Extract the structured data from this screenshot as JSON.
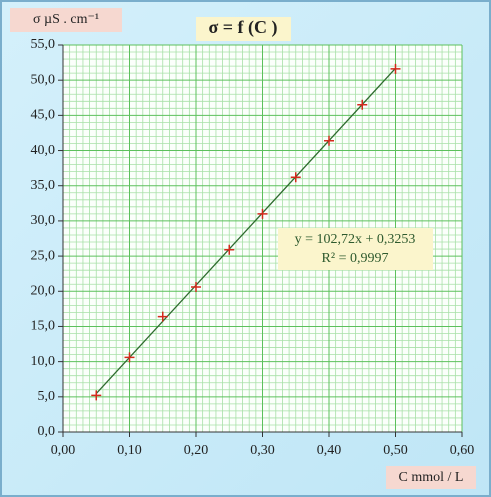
{
  "chart_data": {
    "type": "scatter",
    "title": "σ = f (C )",
    "x_label": "C mmol / L",
    "y_label": "σ µS . cm⁻¹",
    "series": [
      {
        "name": "σ",
        "color": "#d42a1c",
        "x": [
          0.05,
          0.1,
          0.15,
          0.2,
          0.25,
          0.3,
          0.35,
          0.4,
          0.45,
          0.5
        ],
        "values": [
          5.2,
          10.6,
          16.4,
          20.6,
          25.9,
          31.0,
          36.2,
          41.4,
          46.5,
          51.6
        ]
      }
    ],
    "trendline": {
      "slope": 102.72,
      "intercept": 0.3253,
      "color": "#2e6b2e",
      "equation": "y = 102,72x + 0,3253",
      "r2": "R² = 0,9997"
    },
    "xlim": [
      0,
      0.6
    ],
    "ylim": [
      0,
      55
    ],
    "xticks": [
      {
        "value": 0,
        "label": "0,00"
      },
      {
        "value": 0.1,
        "label": "0,10"
      },
      {
        "value": 0.2,
        "label": "0,20"
      },
      {
        "value": 0.3,
        "label": "0,30"
      },
      {
        "value": 0.4,
        "label": "0,40"
      },
      {
        "value": 0.5,
        "label": "0,50"
      },
      {
        "value": 0.6,
        "label": "0,60"
      }
    ],
    "yticks": [
      {
        "value": 0,
        "label": "0,0"
      },
      {
        "value": 5,
        "label": "5,0"
      },
      {
        "value": 10,
        "label": "10,0"
      },
      {
        "value": 15,
        "label": "15,0"
      },
      {
        "value": 20,
        "label": "20,0"
      },
      {
        "value": 25,
        "label": "25,0"
      },
      {
        "value": 30,
        "label": "30,0"
      },
      {
        "value": 35,
        "label": "35,0"
      },
      {
        "value": 40,
        "label": "40,0"
      },
      {
        "value": 45,
        "label": "45,0"
      },
      {
        "value": 50,
        "label": "50,0"
      },
      {
        "value": 55,
        "label": "55,0"
      }
    ],
    "grid": true
  }
}
